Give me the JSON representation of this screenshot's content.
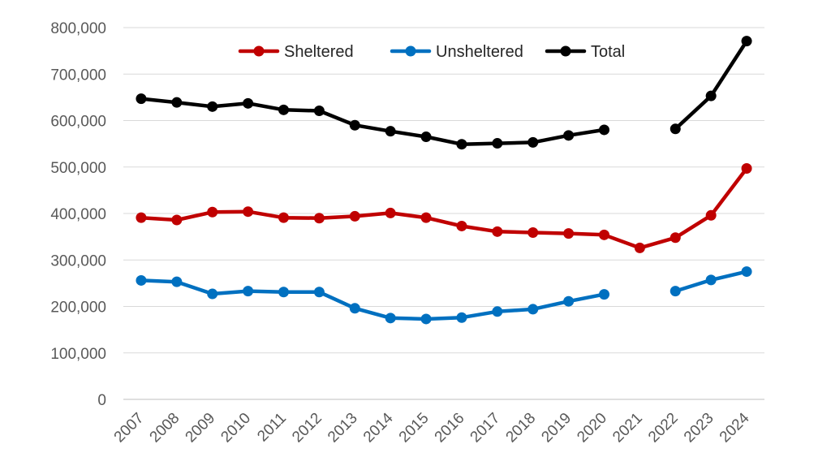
{
  "chart_data": {
    "type": "line",
    "categories": [
      "2007",
      "2008",
      "2009",
      "2010",
      "2011",
      "2012",
      "2013",
      "2014",
      "2015",
      "2016",
      "2017",
      "2018",
      "2019",
      "2020",
      "2021",
      "2022",
      "2023",
      "2024"
    ],
    "ylim": [
      0,
      800000
    ],
    "yticks": [
      0,
      100000,
      200000,
      300000,
      400000,
      500000,
      600000,
      700000,
      800000
    ],
    "ytick_labels": [
      "0",
      "100,000",
      "200,000",
      "300,000",
      "400,000",
      "500,000",
      "600,000",
      "700,000",
      "800,000"
    ],
    "grid": true,
    "legend_position": "top-center",
    "series": [
      {
        "name": "Sheltered",
        "color": "#C00000",
        "values": [
          391000,
          386000,
          403000,
          404000,
          391000,
          390000,
          394000,
          401000,
          391000,
          373000,
          361000,
          359000,
          357000,
          354000,
          326000,
          348000,
          396000,
          497000
        ]
      },
      {
        "name": "Unsheltered",
        "color": "#0070C0",
        "values": [
          256000,
          253000,
          227000,
          233000,
          231000,
          231000,
          196000,
          175000,
          173000,
          176000,
          189000,
          194000,
          211000,
          226000,
          null,
          233000,
          257000,
          275000
        ]
      },
      {
        "name": "Total",
        "color": "#000000",
        "values": [
          647000,
          639000,
          630000,
          637000,
          623000,
          621000,
          590000,
          577000,
          565000,
          549000,
          551000,
          553000,
          568000,
          580000,
          null,
          582000,
          653000,
          771000
        ]
      }
    ]
  }
}
